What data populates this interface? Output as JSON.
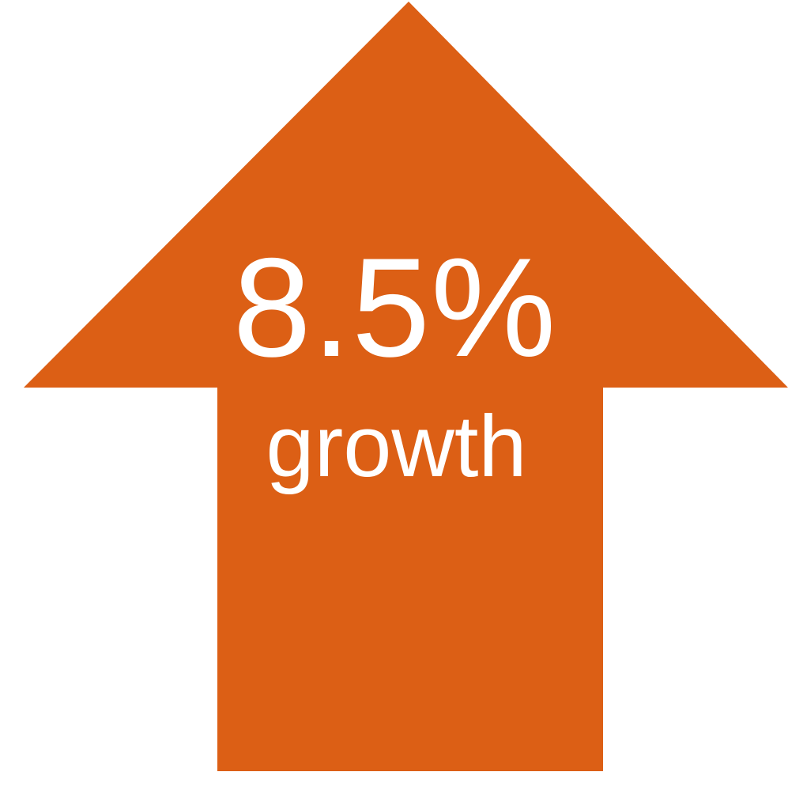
{
  "arrow": {
    "icon": "up-arrow-icon",
    "color": "#dc5f15",
    "value": "8.5%",
    "caption": "growth"
  }
}
